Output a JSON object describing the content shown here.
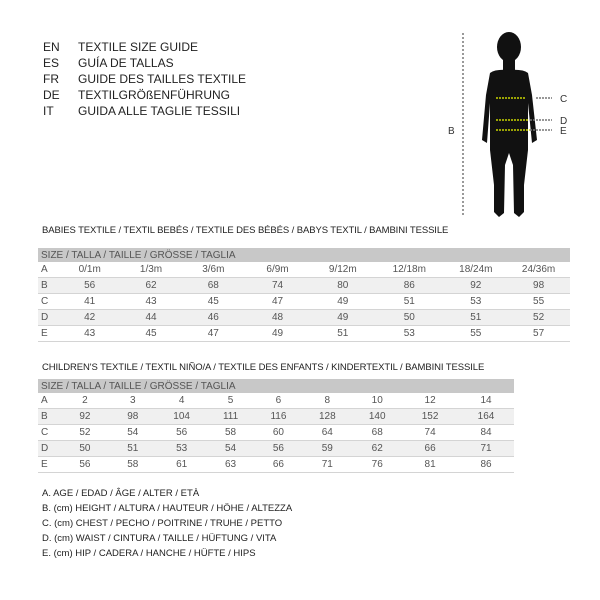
{
  "languages": [
    {
      "code": "EN",
      "text": "TEXTILE SIZE GUIDE"
    },
    {
      "code": "ES",
      "text": "GUÍA DE TALLAS"
    },
    {
      "code": "FR",
      "text": "GUIDE DES TAILLES TEXTILE"
    },
    {
      "code": "DE",
      "text": "TEXTILGRÖßENFÜHRUNG"
    },
    {
      "code": "IT",
      "text": "GUIDA ALLE TAGLIE TESSILI"
    }
  ],
  "figure": {
    "labels": {
      "b": "B",
      "c": "C",
      "d": "D",
      "e": "E"
    },
    "measure_color": "#c8d400"
  },
  "babies": {
    "title": "BABIES TEXTILE / TEXTIL BEBÉS / TEXTILE DES BÉBÉS / BABYS TEXTIL  / BAMBINI TESSILE",
    "header": "SIZE / TALLA / TAILLE / GRÖSSE / TAGLIA",
    "rows": [
      [
        "A",
        "0/1m",
        "1/3m",
        "3/6m",
        "6/9m",
        "9/12m",
        "12/18m",
        "18/24m",
        "24/36m"
      ],
      [
        "B",
        "56",
        "62",
        "68",
        "74",
        "80",
        "86",
        "92",
        "98"
      ],
      [
        "C",
        "41",
        "43",
        "45",
        "47",
        "49",
        "51",
        "53",
        "55"
      ],
      [
        "D",
        "42",
        "44",
        "46",
        "48",
        "49",
        "50",
        "51",
        "52"
      ],
      [
        "E",
        "43",
        "45",
        "47",
        "49",
        "51",
        "53",
        "55",
        "57"
      ]
    ]
  },
  "children": {
    "title": "CHILDREN'S TEXTILE / TEXTIL NIÑO/A / TEXTILE DES ENFANTS / KINDERTEXTIL / BAMBINI TESSILE",
    "header": "SIZE / TALLA / TAILLE / GRÖSSE / TAGLIA",
    "rows": [
      [
        "A",
        "2",
        "3",
        "4",
        "5",
        "6",
        "8",
        "10",
        "12",
        "14"
      ],
      [
        "B",
        "92",
        "98",
        "104",
        "111",
        "116",
        "128",
        "140",
        "152",
        "164"
      ],
      [
        "C",
        "52",
        "54",
        "56",
        "58",
        "60",
        "64",
        "68",
        "74",
        "84"
      ],
      [
        "D",
        "50",
        "51",
        "53",
        "54",
        "56",
        "59",
        "62",
        "66",
        "71"
      ],
      [
        "E",
        "56",
        "58",
        "61",
        "63",
        "66",
        "71",
        "76",
        "81",
        "86"
      ]
    ]
  },
  "legend": [
    "A. AGE / EDAD / ÂGE / ALTER / ETÀ",
    "B. (cm) HEIGHT / ALTURA / HAUTEUR / HÖHE / ALTEZZA",
    "C. (cm) CHEST / PECHO / POITRINE / TRUHE / PETTO",
    "D. (cm) WAIST / CINTURA / TAILLE / HÜFTUNG / VITA",
    "E. (cm) HIP / CADERA / HANCHE / HÜFTE / HIPS"
  ]
}
